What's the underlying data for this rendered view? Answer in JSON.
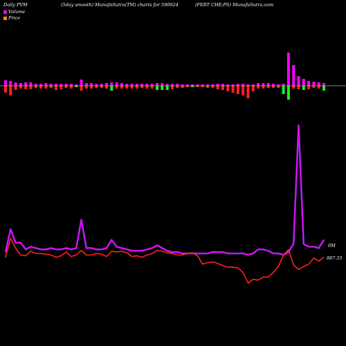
{
  "header": {
    "left": "Daily PVM",
    "mid": "(5day smooth) MunafaSutra(TM) charts for 590024",
    "right": "(FERT CHE;PS) MunafaSutra.com"
  },
  "legend": [
    {
      "label": "Volume",
      "color": "#ff00ff"
    },
    {
      "label": "Price",
      "color": "#ff8c00"
    }
  ],
  "colors": {
    "price_line": "#ff2222",
    "volume_line": "#ff00ff",
    "volume_line_2": "#8a2be2",
    "bar_up": "#ff00ff",
    "bar_down_red": "#ff2020",
    "bar_down_green": "#22ee22",
    "baseline": "#aaaaaa",
    "background": "#000000"
  },
  "right_labels": {
    "volume": "0M",
    "price": "887.55"
  },
  "chart_data": {
    "type": "line",
    "title": "Daily PVM (5day smooth) MunafaSutra(TM) charts for 590024",
    "x_count": 64,
    "series": [
      {
        "name": "Volume",
        "values": [
          6,
          23,
          13,
          13,
          8,
          10,
          9,
          8,
          8,
          9,
          8,
          8,
          9,
          8,
          9,
          30,
          9,
          9,
          8,
          8,
          9,
          15,
          10,
          9,
          8,
          7,
          7,
          7,
          8,
          9,
          11,
          9,
          7,
          6,
          6,
          5,
          5,
          5,
          5,
          5,
          5,
          6,
          6,
          6,
          5,
          5,
          5,
          5,
          4,
          5,
          8,
          8,
          7,
          5,
          5,
          4,
          6,
          12,
          100,
          12,
          10,
          10,
          9,
          15
        ]
      },
      {
        "name": "Price",
        "values": [
          2,
          27,
          14,
          5,
          4,
          10,
          7,
          7,
          6,
          5,
          2,
          4,
          9,
          3,
          5,
          11,
          5,
          5,
          7,
          6,
          3,
          10,
          9,
          10,
          8,
          3,
          4,
          2,
          5,
          7,
          11,
          10,
          8,
          7,
          5,
          5,
          7,
          8,
          4,
          -7,
          -5,
          -4,
          -6,
          -9,
          -11,
          -11,
          -12,
          -18,
          -32,
          -27,
          -28,
          -24,
          -24,
          -18,
          -10,
          5,
          12,
          -8,
          -14,
          -10,
          -7,
          1,
          -3,
          2
        ]
      }
    ],
    "volume_bars": [
      {
        "up": 8,
        "down": 10,
        "down_color": "red"
      },
      {
        "up": 7,
        "down": 14,
        "down_color": "red"
      },
      {
        "up": 5,
        "down": 6,
        "down_color": "red"
      },
      {
        "up": 4,
        "down": 4,
        "down_color": "red"
      },
      {
        "up": 5,
        "down": 5,
        "down_color": "red"
      },
      {
        "up": 5,
        "down": 5,
        "down_color": "red"
      },
      {
        "up": 3,
        "down": 3,
        "down_color": "red"
      },
      {
        "up": 3,
        "down": 4,
        "down_color": "red"
      },
      {
        "up": 4,
        "down": 4,
        "down_color": "red"
      },
      {
        "up": 3,
        "down": 3,
        "down_color": "red"
      },
      {
        "up": 3,
        "down": 6,
        "down_color": "red"
      },
      {
        "up": 3,
        "down": 5,
        "down_color": "red"
      },
      {
        "up": 3,
        "down": 3,
        "down_color": "red"
      },
      {
        "up": 3,
        "down": 4,
        "down_color": "red"
      },
      {
        "up": 2,
        "down": 2,
        "down_color": "green"
      },
      {
        "up": 9,
        "down": 7,
        "down_color": "red"
      },
      {
        "up": 4,
        "down": 4,
        "down_color": "red"
      },
      {
        "up": 4,
        "down": 4,
        "down_color": "red"
      },
      {
        "up": 3,
        "down": 3,
        "down_color": "red"
      },
      {
        "up": 3,
        "down": 3,
        "down_color": "red"
      },
      {
        "up": 4,
        "down": 4,
        "down_color": "red"
      },
      {
        "up": 5,
        "down": 7,
        "down_color": "green"
      },
      {
        "up": 5,
        "down": 4,
        "down_color": "red"
      },
      {
        "up": 4,
        "down": 4,
        "down_color": "red"
      },
      {
        "up": 3,
        "down": 4,
        "down_color": "red"
      },
      {
        "up": 3,
        "down": 4,
        "down_color": "red"
      },
      {
        "up": 3,
        "down": 4,
        "down_color": "red"
      },
      {
        "up": 3,
        "down": 3,
        "down_color": "red"
      },
      {
        "up": 3,
        "down": 4,
        "down_color": "red"
      },
      {
        "up": 3,
        "down": 4,
        "down_color": "red"
      },
      {
        "up": 4,
        "down": 6,
        "down_color": "green"
      },
      {
        "up": 4,
        "down": 6,
        "down_color": "green"
      },
      {
        "up": 3,
        "down": 6,
        "down_color": "green"
      },
      {
        "up": 3,
        "down": 5,
        "down_color": "red"
      },
      {
        "up": 3,
        "down": 3,
        "down_color": "red"
      },
      {
        "up": 2,
        "down": 3,
        "down_color": "red"
      },
      {
        "up": 2,
        "down": 2,
        "down_color": "red"
      },
      {
        "up": 2,
        "down": 2,
        "down_color": "green"
      },
      {
        "up": 2,
        "down": 2,
        "down_color": "red"
      },
      {
        "up": 2,
        "down": 2,
        "down_color": "red"
      },
      {
        "up": 2,
        "down": 3,
        "down_color": "red"
      },
      {
        "up": 2,
        "down": 3,
        "down_color": "red"
      },
      {
        "up": 3,
        "down": 5,
        "down_color": "red"
      },
      {
        "up": 3,
        "down": 6,
        "down_color": "red"
      },
      {
        "up": 2,
        "down": 8,
        "down_color": "red"
      },
      {
        "up": 2,
        "down": 10,
        "down_color": "red"
      },
      {
        "up": 3,
        "down": 12,
        "down_color": "red"
      },
      {
        "up": 3,
        "down": 14,
        "down_color": "red"
      },
      {
        "up": 2,
        "down": 18,
        "down_color": "red"
      },
      {
        "up": 2,
        "down": 8,
        "down_color": "red"
      },
      {
        "up": 4,
        "down": 4,
        "down_color": "red"
      },
      {
        "up": 4,
        "down": 4,
        "down_color": "red"
      },
      {
        "up": 4,
        "down": 3,
        "down_color": "red"
      },
      {
        "up": 3,
        "down": 3,
        "down_color": "red"
      },
      {
        "up": 2,
        "down": 3,
        "down_color": "red"
      },
      {
        "up": 3,
        "down": 12,
        "down_color": "green"
      },
      {
        "up": 48,
        "down": 20,
        "down_color": "green"
      },
      {
        "up": 30,
        "down": 4,
        "down_color": "red"
      },
      {
        "up": 14,
        "down": 5,
        "down_color": "red"
      },
      {
        "up": 10,
        "down": 6,
        "down_color": "green"
      },
      {
        "up": 7,
        "down": 5,
        "down_color": "red"
      },
      {
        "up": 6,
        "down": 3,
        "down_color": "red"
      },
      {
        "up": 5,
        "down": 4,
        "down_color": "red"
      },
      {
        "up": 4,
        "down": 7,
        "down_color": "green"
      }
    ],
    "legend_position": "top-left",
    "grid": false
  }
}
